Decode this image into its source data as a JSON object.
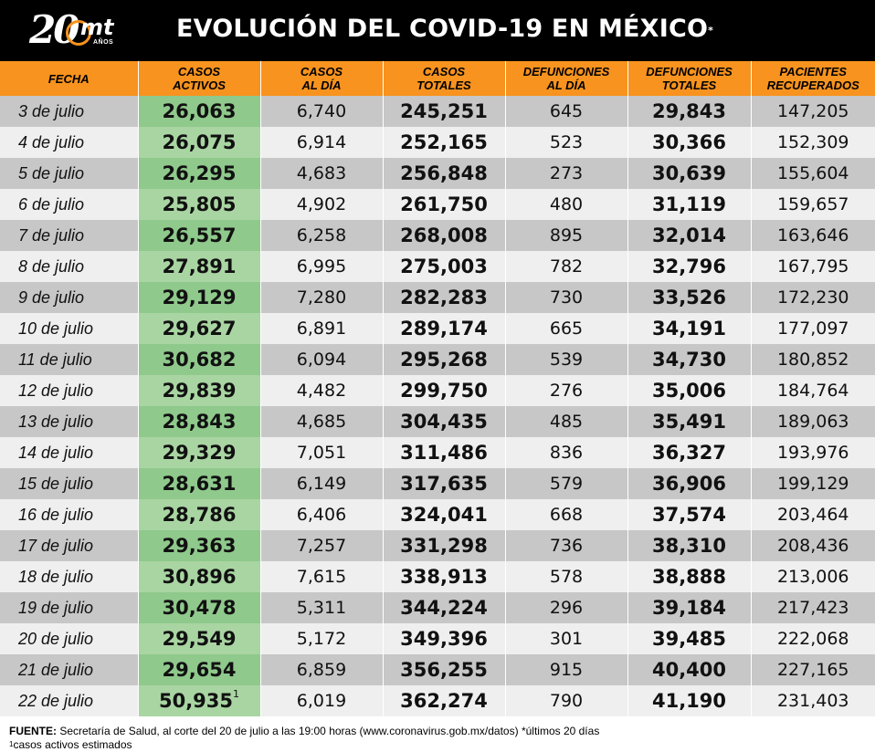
{
  "header": {
    "logo_number": "20",
    "logo_brand": "mt",
    "logo_sub": "AÑOS",
    "title": "EVOLUCIÓN DEL COVID-19 EN MÉXICO",
    "title_mark": "*"
  },
  "colors": {
    "header_bg": "#000000",
    "orange": "#f7931e",
    "green": "#a9d5a2",
    "green_dark": "#8fc98c"
  },
  "columns": [
    [
      "FECHA"
    ],
    [
      "CASOS",
      "ACTIVOS"
    ],
    [
      "CASOS",
      "AL DÍA"
    ],
    [
      "CASOS",
      "TOTALES"
    ],
    [
      "DEFUNCIONES",
      "AL DÍA"
    ],
    [
      "DEFUNCIONES",
      "TOTALES"
    ],
    [
      "PACIENTES",
      "RECUPERADOS"
    ]
  ],
  "rows": [
    {
      "fecha": "3 de julio",
      "activos": "26,063",
      "al_dia": "6,740",
      "totales": "245,251",
      "def_dia": "645",
      "def_totales": "29,843",
      "recuperados": "147,205"
    },
    {
      "fecha": "4 de julio",
      "activos": "26,075",
      "al_dia": "6,914",
      "totales": "252,165",
      "def_dia": "523",
      "def_totales": "30,366",
      "recuperados": "152,309"
    },
    {
      "fecha": "5 de julio",
      "activos": "26,295",
      "al_dia": "4,683",
      "totales": "256,848",
      "def_dia": "273",
      "def_totales": "30,639",
      "recuperados": "155,604"
    },
    {
      "fecha": "6 de julio",
      "activos": "25,805",
      "al_dia": "4,902",
      "totales": "261,750",
      "def_dia": "480",
      "def_totales": "31,119",
      "recuperados": "159,657"
    },
    {
      "fecha": "7 de julio",
      "activos": "26,557",
      "al_dia": "6,258",
      "totales": "268,008",
      "def_dia": "895",
      "def_totales": "32,014",
      "recuperados": "163,646"
    },
    {
      "fecha": "8 de julio",
      "activos": "27,891",
      "al_dia": "6,995",
      "totales": "275,003",
      "def_dia": "782",
      "def_totales": "32,796",
      "recuperados": "167,795"
    },
    {
      "fecha": "9 de julio",
      "activos": "29,129",
      "al_dia": "7,280",
      "totales": "282,283",
      "def_dia": "730",
      "def_totales": "33,526",
      "recuperados": "172,230"
    },
    {
      "fecha": "10 de julio",
      "activos": "29,627",
      "al_dia": "6,891",
      "totales": "289,174",
      "def_dia": "665",
      "def_totales": "34,191",
      "recuperados": "177,097"
    },
    {
      "fecha": "11 de julio",
      "activos": "30,682",
      "al_dia": "6,094",
      "totales": "295,268",
      "def_dia": "539",
      "def_totales": "34,730",
      "recuperados": "180,852"
    },
    {
      "fecha": "12 de julio",
      "activos": "29,839",
      "al_dia": "4,482",
      "totales": "299,750",
      "def_dia": "276",
      "def_totales": "35,006",
      "recuperados": "184,764"
    },
    {
      "fecha": "13 de julio",
      "activos": "28,843",
      "al_dia": "4,685",
      "totales": "304,435",
      "def_dia": "485",
      "def_totales": "35,491",
      "recuperados": "189,063"
    },
    {
      "fecha": "14 de julio",
      "activos": "29,329",
      "al_dia": "7,051",
      "totales": "311,486",
      "def_dia": "836",
      "def_totales": "36,327",
      "recuperados": "193,976"
    },
    {
      "fecha": "15 de julio",
      "activos": "28,631",
      "al_dia": "6,149",
      "totales": "317,635",
      "def_dia": "579",
      "def_totales": "36,906",
      "recuperados": "199,129"
    },
    {
      "fecha": "16 de julio",
      "activos": "28,786",
      "al_dia": "6,406",
      "totales": "324,041",
      "def_dia": "668",
      "def_totales": "37,574",
      "recuperados": "203,464"
    },
    {
      "fecha": "17 de julio",
      "activos": "29,363",
      "al_dia": "7,257",
      "totales": "331,298",
      "def_dia": "736",
      "def_totales": "38,310",
      "recuperados": "208,436"
    },
    {
      "fecha": "18 de julio",
      "activos": "30,896",
      "al_dia": "7,615",
      "totales": "338,913",
      "def_dia": "578",
      "def_totales": "38,888",
      "recuperados": "213,006"
    },
    {
      "fecha": "19 de julio",
      "activos": "30,478",
      "al_dia": "5,311",
      "totales": "344,224",
      "def_dia": "296",
      "def_totales": "39,184",
      "recuperados": "217,423"
    },
    {
      "fecha": "20 de julio",
      "activos": "29,549",
      "al_dia": "5,172",
      "totales": "349,396",
      "def_dia": "301",
      "def_totales": "39,485",
      "recuperados": "222,068"
    },
    {
      "fecha": "21 de julio",
      "activos": "29,654",
      "al_dia": "6,859",
      "totales": "356,255",
      "def_dia": "915",
      "def_totales": "40,400",
      "recuperados": "227,165"
    },
    {
      "fecha": "22 de julio",
      "activos": "50,935",
      "activos_mark": "1",
      "al_dia": "6,019",
      "totales": "362,274",
      "def_dia": "790",
      "def_totales": "41,190",
      "recuperados": "231,403"
    }
  ],
  "footer": {
    "label": "FUENTE:",
    "line1": " Secretaría de Salud, al corte del 20 de julio a las 19:00 horas (www.coronavirus.gob.mx/datos) *últimos 20 días",
    "line2_mark": "1",
    "line2": "casos activos estimados"
  }
}
